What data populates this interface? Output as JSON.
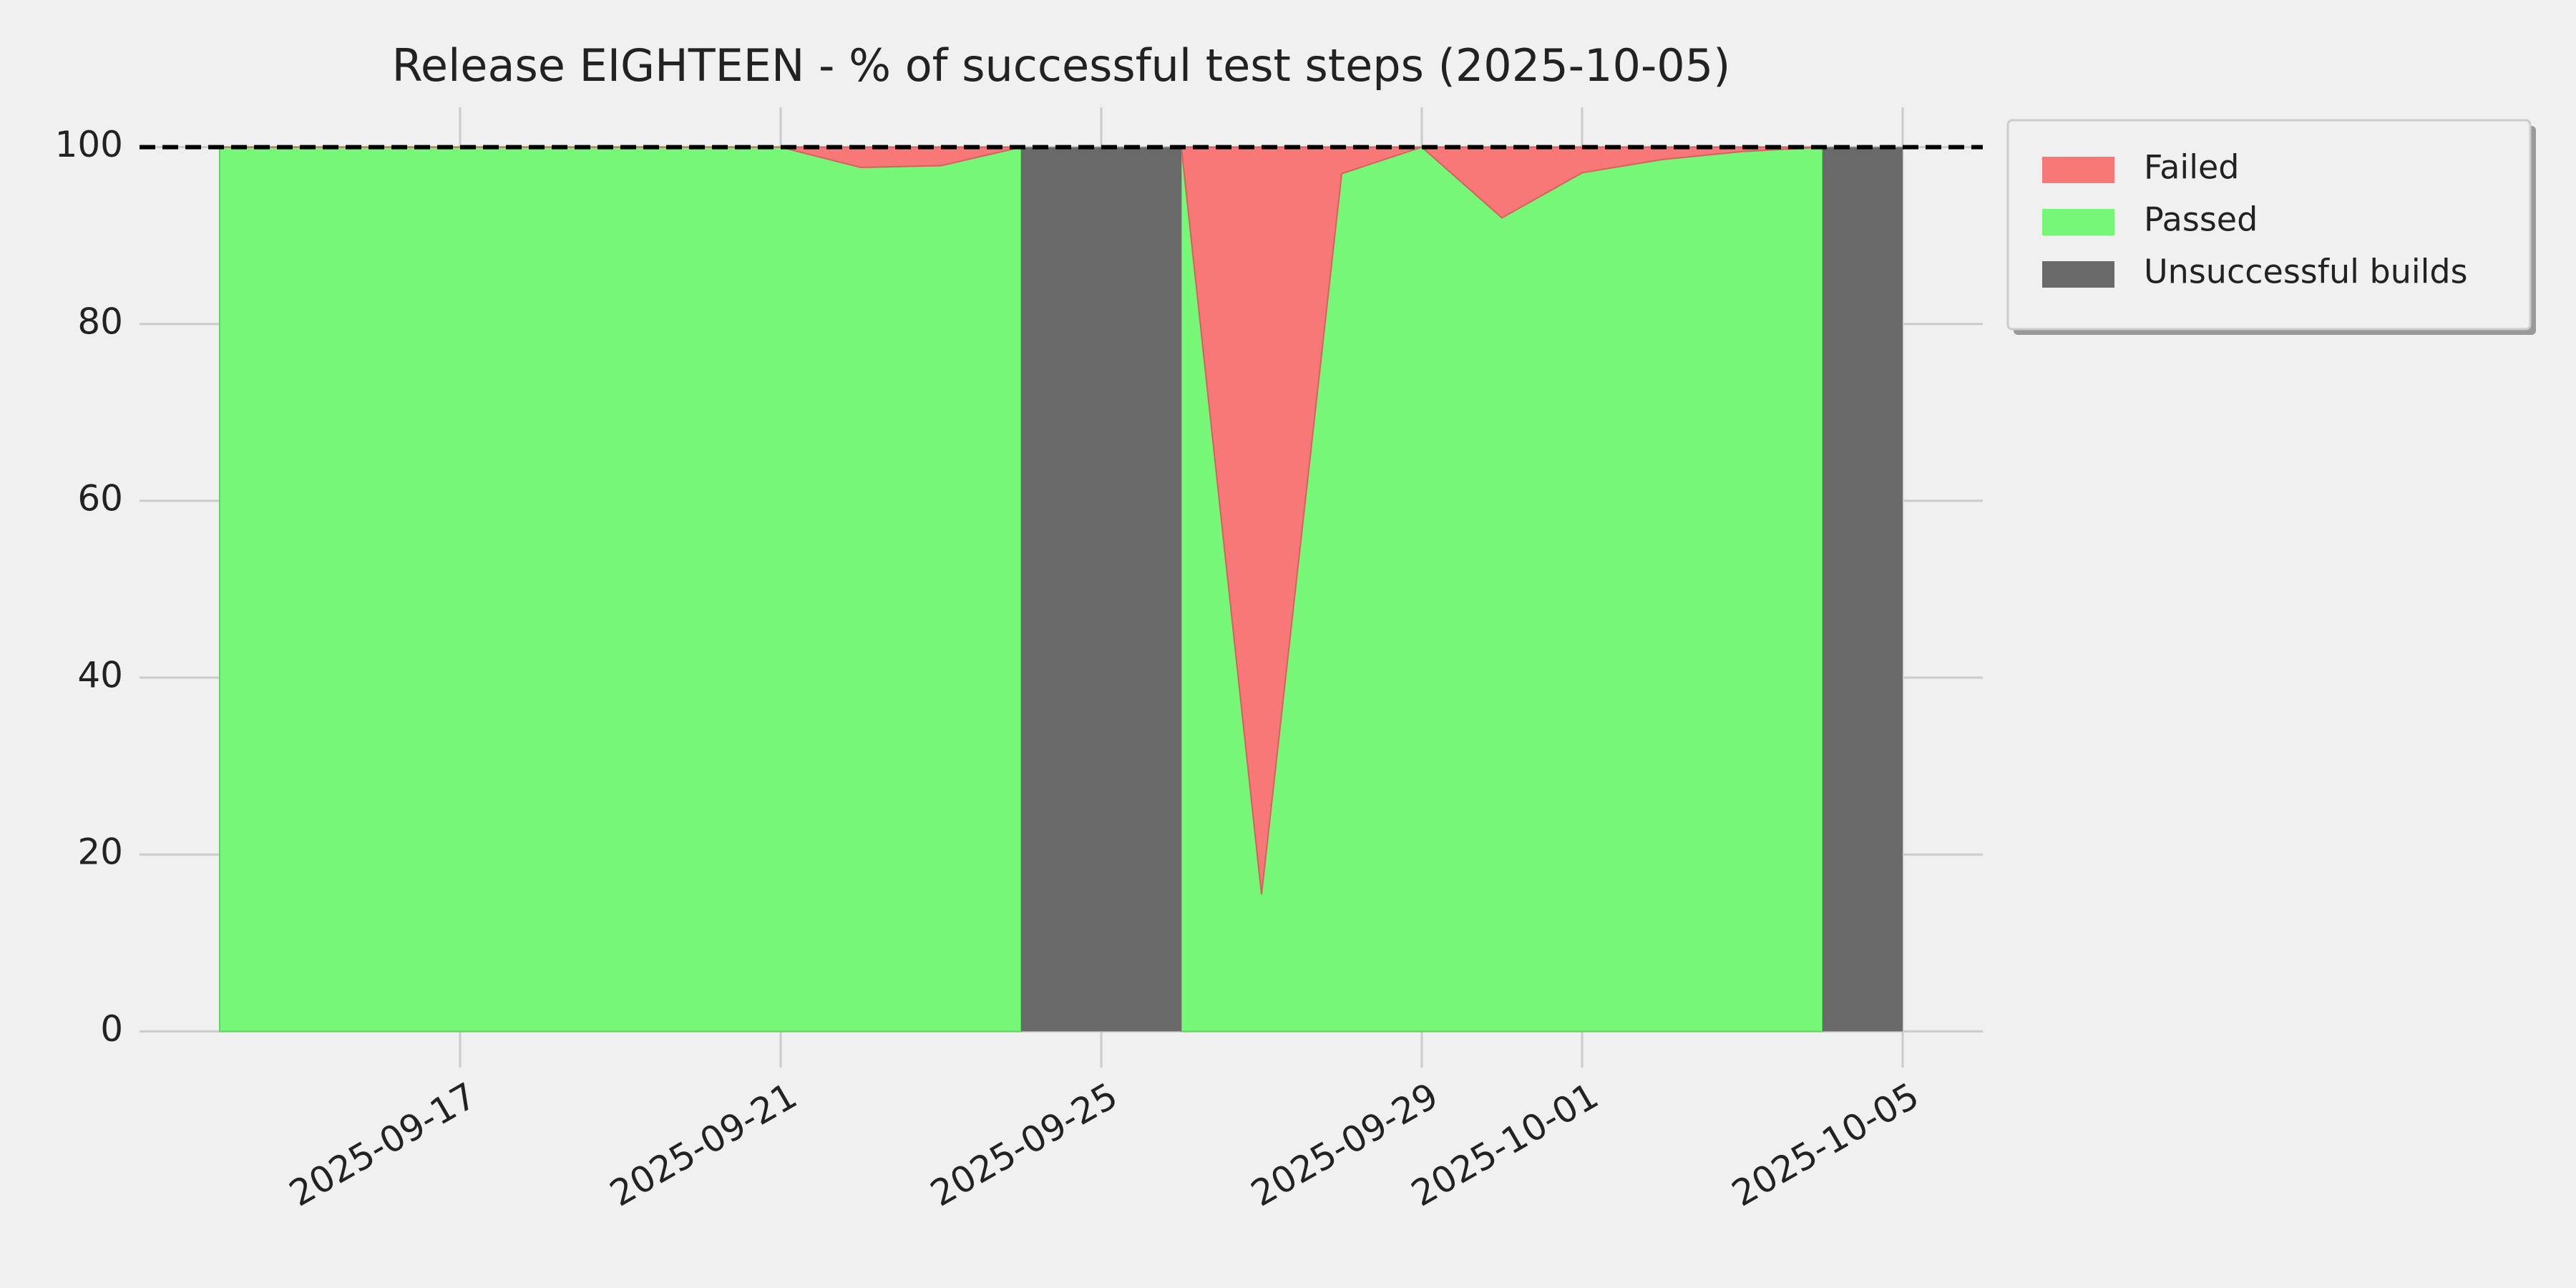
{
  "chart_data": {
    "type": "stacked-area",
    "title": "Release EIGHTEEN - % of successful test steps (2025-10-05)",
    "x": [
      "2025-09-14",
      "2025-09-15",
      "2025-09-16",
      "2025-09-17",
      "2025-09-18",
      "2025-09-19",
      "2025-09-20",
      "2025-09-21",
      "2025-09-22",
      "2025-09-23",
      "2025-09-24",
      "2025-09-25",
      "2025-09-26",
      "2025-09-27",
      "2025-09-28",
      "2025-09-29",
      "2025-09-30",
      "2025-10-01",
      "2025-10-02",
      "2025-10-03",
      "2025-10-04",
      "2025-10-05"
    ],
    "series": [
      {
        "name": "Failed",
        "color": "#f87878",
        "values": [
          0,
          0,
          0,
          0,
          0,
          0,
          0,
          0,
          2.3,
          2.1,
          0,
          null,
          0,
          84.5,
          3,
          0,
          8,
          2.9,
          1.4,
          0.5,
          0,
          null
        ]
      },
      {
        "name": "Passed",
        "color": "#77f777",
        "values": [
          100,
          100,
          100,
          100,
          100,
          100,
          100,
          100,
          97.7,
          97.9,
          100,
          null,
          100,
          15.5,
          97,
          100,
          92,
          97.1,
          98.6,
          99.5,
          100,
          null
        ]
      },
      {
        "name": "Unsuccessful builds",
        "color": "#696969",
        "values": [
          null,
          null,
          null,
          null,
          null,
          null,
          null,
          null,
          null,
          null,
          null,
          100,
          null,
          null,
          null,
          null,
          null,
          null,
          null,
          null,
          null,
          100
        ]
      }
    ],
    "xlim": [
      "2025-09-13",
      "2025-10-06"
    ],
    "xticks": [
      "2025-09-17",
      "2025-09-21",
      "2025-09-25",
      "2025-09-29",
      "2025-10-01",
      "2025-10-05"
    ],
    "ylim": [
      -4.1,
      104.5
    ],
    "yticks": [
      0,
      20,
      40,
      60,
      80,
      100
    ],
    "hline": 100,
    "grid": true,
    "legend": "outside-right"
  }
}
